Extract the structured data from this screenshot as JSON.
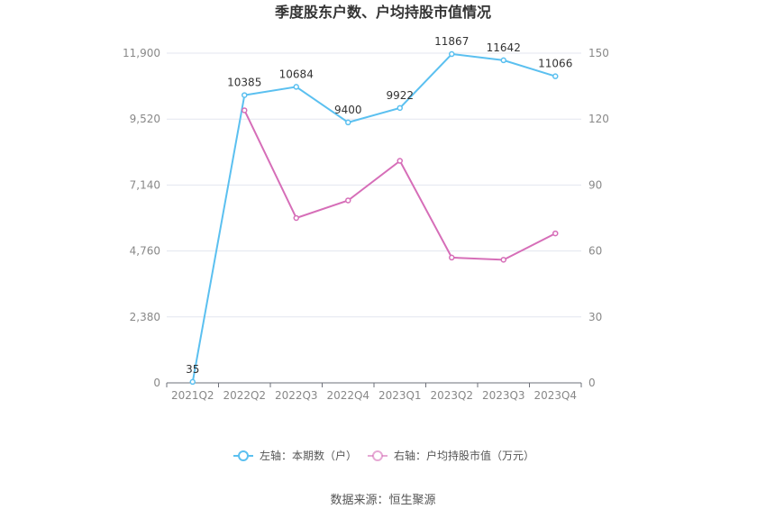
{
  "chart_data": {
    "type": "line",
    "title": "季度股东户数、户均持股市值情况",
    "categories": [
      "2021Q2",
      "2022Q2",
      "2022Q3",
      "2022Q4",
      "2023Q1",
      "2023Q2",
      "2023Q3",
      "2023Q4"
    ],
    "left_axis": {
      "ylim": [
        0,
        11900
      ],
      "ticks": [
        "0",
        "2,380",
        "4,760",
        "7,140",
        "9,520",
        "11,900"
      ]
    },
    "right_axis": {
      "ylim": [
        0,
        150
      ],
      "ticks": [
        "0",
        "30",
        "60",
        "90",
        "120",
        "150"
      ]
    },
    "series": [
      {
        "name": "左轴：本期数（户）",
        "axis": "left",
        "color": "#5bc0f0",
        "values": [
          35,
          10385,
          10684,
          9400,
          9922,
          11867,
          11642,
          11066
        ],
        "labels": [
          "35",
          "10385",
          "10684",
          "9400",
          "9922",
          "11867",
          "11642",
          "11066"
        ]
      },
      {
        "name": "右轴：户均持股市值（万元）",
        "axis": "right",
        "color": "#d66eb8",
        "values": [
          null,
          124,
          75,
          83,
          101,
          57,
          56,
          68
        ]
      }
    ],
    "grid": true,
    "legend_position": "bottom"
  },
  "source": "数据来源：恒生聚源"
}
